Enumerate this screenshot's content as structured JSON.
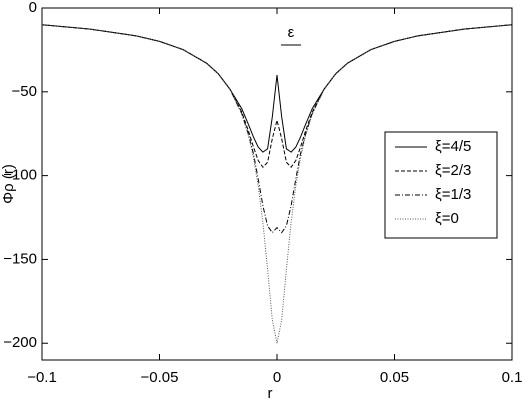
{
  "chart_data": {
    "type": "line",
    "x_label": "r",
    "y_label": "Φρ (r)",
    "annotation": "ε",
    "x": [
      -0.1,
      -0.08,
      -0.06,
      -0.05,
      -0.04,
      -0.03,
      -0.025,
      -0.02,
      -0.015,
      -0.012,
      -0.01,
      -0.008,
      -0.006,
      -0.004,
      -0.002,
      0,
      0.002,
      0.004,
      0.006,
      0.008,
      0.01,
      0.012,
      0.015,
      0.02,
      0.025,
      0.03,
      0.04,
      0.05,
      0.06,
      0.08,
      0.1
    ],
    "series": [
      {
        "name": "ξ=4/5",
        "color": "#000000",
        "dash": "solid",
        "values": [
          -10,
          -12.5,
          -16.6,
          -19.9,
          -24.8,
          -32.9,
          -39.2,
          -48.5,
          -60,
          -70,
          -77,
          -83,
          -86,
          -84,
          -65,
          -40,
          -65,
          -84,
          -86,
          -83,
          -77,
          -70,
          -60,
          -48.5,
          -39.2,
          -32.9,
          -24.8,
          -19.9,
          -16.6,
          -12.5,
          -10
        ]
      },
      {
        "name": "ξ=2/3",
        "color": "#000000",
        "dash": "dashed",
        "values": [
          -10,
          -12.5,
          -16.6,
          -19.9,
          -24.8,
          -32.9,
          -39.2,
          -48.5,
          -62,
          -74,
          -83,
          -91,
          -95,
          -92,
          -78,
          -67,
          -78,
          -92,
          -95,
          -91,
          -83,
          -74,
          -62,
          -48.5,
          -39.2,
          -32.9,
          -24.8,
          -19.9,
          -16.6,
          -12.5,
          -10
        ]
      },
      {
        "name": "ξ=1/3",
        "color": "#000000",
        "dash": "dashdot",
        "values": [
          -10,
          -12.5,
          -16.6,
          -19.9,
          -24.8,
          -32.9,
          -39.2,
          -48.5,
          -63,
          -76,
          -87,
          -102,
          -118,
          -130,
          -134,
          -131,
          -134,
          -130,
          -118,
          -102,
          -87,
          -76,
          -63,
          -48.5,
          -39.2,
          -32.9,
          -24.8,
          -19.9,
          -16.6,
          -12.5,
          -10
        ]
      },
      {
        "name": "ξ=0",
        "color": "#555555",
        "dash": "dotted",
        "values": [
          -10,
          -12.5,
          -16.6,
          -19.9,
          -24.8,
          -32.9,
          -39.2,
          -48.5,
          -63.2,
          -76.9,
          -89.4,
          -106,
          -128,
          -156,
          -186,
          -200,
          -186,
          -156,
          -128,
          -106,
          -89.4,
          -76.9,
          -63.2,
          -48.5,
          -39.2,
          -32.9,
          -24.8,
          -19.9,
          -16.6,
          -12.5,
          -10
        ]
      }
    ],
    "xlim": [
      -0.1,
      0.1
    ],
    "xticks": [
      {
        "value": -0.1,
        "label": "−0.1"
      },
      {
        "value": -0.05,
        "label": "−0.05"
      },
      0,
      0.05,
      0.1
    ],
    "ylim": [
      -210,
      0
    ],
    "yticks": [
      0,
      {
        "value": -50,
        "label": "−50"
      },
      {
        "value": -100,
        "label": "−100"
      },
      {
        "value": -150,
        "label": "−150"
      },
      {
        "value": -200,
        "label": "−200"
      }
    ],
    "grid": false,
    "legend": "right"
  }
}
